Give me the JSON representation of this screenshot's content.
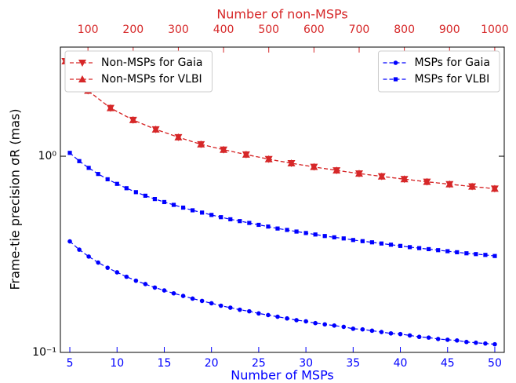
{
  "chart_data": {
    "type": "line",
    "xlabel": "Number of MSPs",
    "x2label": "Number of non-MSPs",
    "ylabel": "Frame-tie precision σR (mas)",
    "xlim": [
      4,
      51
    ],
    "xticks": [
      5,
      10,
      15,
      20,
      25,
      30,
      35,
      40,
      45,
      50
    ],
    "xcolor": "#0000ff",
    "x2lim": [
      39,
      1021
    ],
    "x2ticks": [
      100,
      200,
      300,
      400,
      500,
      600,
      700,
      800,
      900,
      1000
    ],
    "x2color": "#d62728",
    "ylim": [
      0.1,
      3.6
    ],
    "yscale": "log",
    "yticks": [
      {
        "value": 1,
        "label": "10⁰"
      },
      {
        "value": 0.1,
        "label": "10⁻¹"
      }
    ],
    "series": [
      {
        "name": "Non-MSPs for Gaia",
        "color": "#d62728",
        "marker": "triangle-down",
        "axis": "x2",
        "legend_loc": "upper left",
        "x": [
          50,
          100,
          150,
          200,
          250,
          300,
          350,
          400,
          450,
          500,
          550,
          600,
          650,
          700,
          750,
          800,
          850,
          900,
          950,
          1000
        ],
        "values": [
          3.05,
          2.16,
          1.76,
          1.53,
          1.37,
          1.25,
          1.15,
          1.08,
          1.02,
          0.966,
          0.921,
          0.882,
          0.847,
          0.816,
          0.789,
          0.764,
          0.741,
          0.72,
          0.701,
          0.683
        ]
      },
      {
        "name": "Non-MSPs for VLBI",
        "color": "#d62728",
        "marker": "triangle-up",
        "axis": "x2",
        "legend_loc": "upper left",
        "x": [
          50,
          100,
          150,
          200,
          250,
          300,
          350,
          400,
          450,
          500,
          550,
          600,
          650,
          700,
          750,
          800,
          850,
          900,
          950,
          1000
        ],
        "values": [
          3.05,
          2.16,
          1.76,
          1.53,
          1.37,
          1.25,
          1.15,
          1.08,
          1.02,
          0.966,
          0.921,
          0.882,
          0.847,
          0.816,
          0.789,
          0.764,
          0.741,
          0.72,
          0.701,
          0.683
        ]
      },
      {
        "name": "MSPs for Gaia",
        "color": "#0000ff",
        "marker": "circle",
        "axis": "x",
        "legend_loc": "upper right",
        "x": [
          5,
          6,
          7,
          8,
          9,
          10,
          11,
          12,
          13,
          14,
          15,
          16,
          17,
          18,
          19,
          20,
          21,
          22,
          23,
          24,
          25,
          26,
          27,
          28,
          29,
          30,
          31,
          32,
          33,
          34,
          35,
          36,
          37,
          38,
          39,
          40,
          41,
          42,
          43,
          44,
          45,
          46,
          47,
          48,
          49,
          50
        ],
        "values": [
          0.368,
          0.334,
          0.308,
          0.287,
          0.27,
          0.256,
          0.243,
          0.232,
          0.223,
          0.214,
          0.207,
          0.2,
          0.194,
          0.188,
          0.183,
          0.178,
          0.173,
          0.169,
          0.165,
          0.162,
          0.158,
          0.155,
          0.152,
          0.149,
          0.146,
          0.144,
          0.141,
          0.139,
          0.137,
          0.135,
          0.132,
          0.131,
          0.129,
          0.127,
          0.125,
          0.124,
          0.122,
          0.12,
          0.119,
          0.117,
          0.116,
          0.115,
          0.113,
          0.112,
          0.111,
          0.11
        ]
      },
      {
        "name": "MSPs for VLBI",
        "color": "#0000ff",
        "marker": "square",
        "axis": "x",
        "legend_loc": "upper right",
        "x": [
          5,
          6,
          7,
          8,
          9,
          10,
          11,
          12,
          13,
          14,
          15,
          16,
          17,
          18,
          19,
          20,
          21,
          22,
          23,
          24,
          25,
          26,
          27,
          28,
          29,
          30,
          31,
          32,
          33,
          34,
          35,
          36,
          37,
          38,
          39,
          40,
          41,
          42,
          43,
          44,
          45,
          46,
          47,
          48,
          49,
          50
        ],
        "values": [
          1.04,
          0.944,
          0.872,
          0.812,
          0.763,
          0.723,
          0.687,
          0.656,
          0.629,
          0.605,
          0.584,
          0.565,
          0.547,
          0.53,
          0.516,
          0.502,
          0.489,
          0.477,
          0.467,
          0.457,
          0.447,
          0.438,
          0.428,
          0.421,
          0.413,
          0.406,
          0.399,
          0.392,
          0.386,
          0.381,
          0.374,
          0.369,
          0.364,
          0.359,
          0.354,
          0.349,
          0.344,
          0.34,
          0.336,
          0.332,
          0.328,
          0.324,
          0.32,
          0.317,
          0.314,
          0.31
        ]
      }
    ]
  }
}
